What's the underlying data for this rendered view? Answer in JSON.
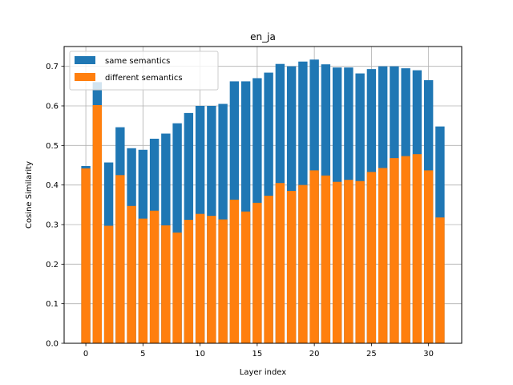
{
  "chart_data": {
    "type": "bar",
    "title": "en_ja",
    "xlabel": "Layer index",
    "ylabel": "Cosine Similarity",
    "x": [
      0,
      1,
      2,
      3,
      4,
      5,
      6,
      7,
      8,
      9,
      10,
      11,
      12,
      13,
      14,
      15,
      16,
      17,
      18,
      19,
      20,
      21,
      22,
      23,
      24,
      25,
      26,
      27,
      28,
      29,
      30,
      31
    ],
    "series": [
      {
        "name": "same semantics",
        "color": "#1f77b4",
        "values": [
          0.448,
          0.66,
          0.457,
          0.546,
          0.493,
          0.489,
          0.517,
          0.53,
          0.556,
          0.582,
          0.6,
          0.6,
          0.605,
          0.662,
          0.662,
          0.67,
          0.684,
          0.706,
          0.7,
          0.712,
          0.717,
          0.705,
          0.697,
          0.697,
          0.682,
          0.693,
          0.7,
          0.7,
          0.695,
          0.69,
          0.665,
          0.548
        ]
      },
      {
        "name": "different semantics",
        "color": "#ff7f0e",
        "values": [
          0.442,
          0.602,
          0.297,
          0.425,
          0.347,
          0.315,
          0.335,
          0.298,
          0.28,
          0.312,
          0.327,
          0.322,
          0.313,
          0.363,
          0.333,
          0.355,
          0.373,
          0.405,
          0.385,
          0.4,
          0.437,
          0.424,
          0.408,
          0.413,
          0.41,
          0.433,
          0.443,
          0.468,
          0.473,
          0.478,
          0.437,
          0.318
        ]
      }
    ],
    "xticks": [
      0,
      5,
      10,
      15,
      20,
      25,
      30
    ],
    "yticks": [
      0.0,
      0.1,
      0.2,
      0.3,
      0.4,
      0.5,
      0.6,
      0.7
    ],
    "xlim": [
      -1.9,
      32.9
    ],
    "ylim": [
      0,
      0.75
    ],
    "grid": true,
    "legend_position": "upper-left"
  }
}
